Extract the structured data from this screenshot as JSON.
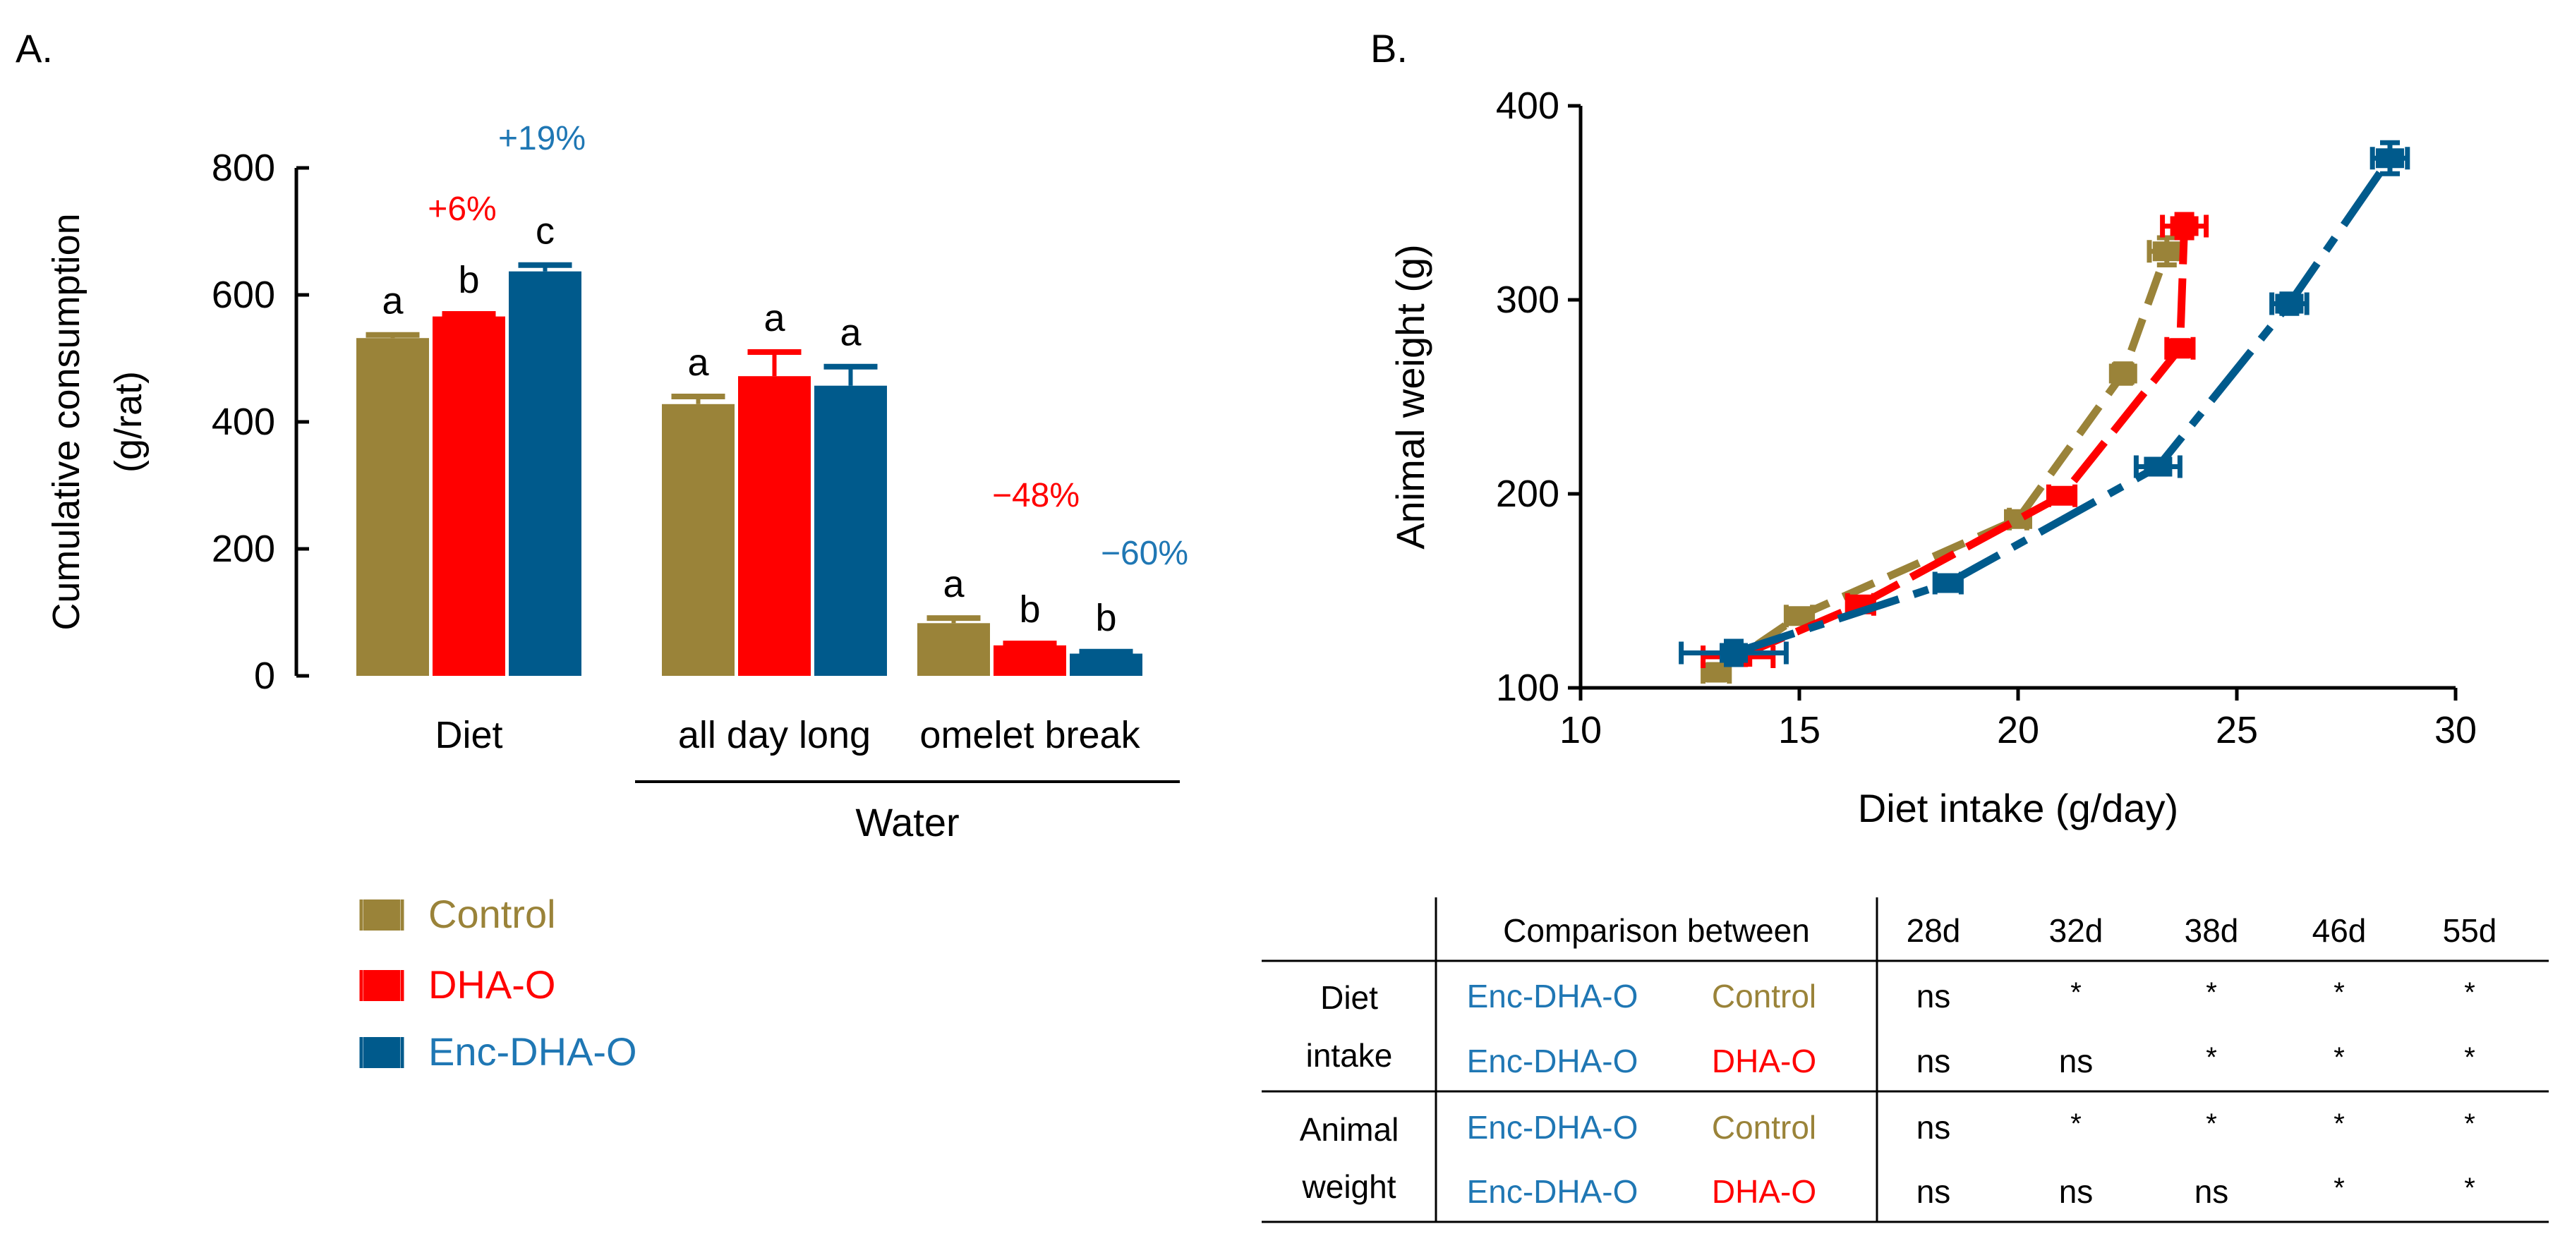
{
  "panel_a_label": "A.",
  "panel_b_label": "B.",
  "colors": {
    "Control": "#9a8339",
    "DHA-O": "#ff0000",
    "Enc-DHA-O": "#005a8c"
  },
  "chart_data": [
    {
      "type": "bar",
      "panel": "A",
      "ylabel_line1": "Cumulative  consumption",
      "ylabel_line2": "(g/rat)",
      "ylim": [
        0,
        800
      ],
      "yticks": [
        0,
        200,
        400,
        600,
        800
      ],
      "categories": [
        "Diet",
        "all day long",
        "omelet break"
      ],
      "group_label": "Water",
      "series": [
        {
          "name": "Control",
          "values": [
            532,
            428,
            83
          ],
          "errors": [
            5,
            12,
            8
          ]
        },
        {
          "name": "DHA-O",
          "values": [
            566,
            472,
            48
          ],
          "errors": [
            4,
            38,
            3
          ]
        },
        {
          "name": "Enc-DHA-O",
          "values": [
            637,
            457,
            35
          ],
          "errors": [
            10,
            30,
            3
          ]
        }
      ],
      "letters": [
        [
          "a",
          "b",
          "c"
        ],
        [
          "a",
          "a",
          "a"
        ],
        [
          "a",
          "b",
          "b"
        ]
      ],
      "annotations": [
        {
          "text": "+6%",
          "category": 0,
          "series": 1
        },
        {
          "text": "+19%",
          "category": 0,
          "series": 2
        },
        {
          "text": "−48%",
          "category": 2,
          "series": 1
        },
        {
          "text": "−60%",
          "category": 2,
          "series": 2
        }
      ]
    },
    {
      "type": "line",
      "panel": "B",
      "xlabel": "Diet intake  (g/day)",
      "ylabel": "Animal weight  (g)",
      "xlim": [
        10,
        30
      ],
      "ylim": [
        100,
        400
      ],
      "xticks": [
        10,
        15,
        20,
        25,
        30
      ],
      "yticks": [
        100,
        200,
        300,
        400
      ],
      "series": [
        {
          "name": "Control",
          "x": [
            13.1,
            15.0,
            20.0,
            22.4,
            23.4
          ],
          "y": [
            108,
            137,
            187,
            262,
            325
          ],
          "xerr": [
            0.3,
            0.3,
            0.2,
            0.2,
            0.4
          ],
          "yerr": [
            4,
            3,
            3,
            5,
            7
          ]
        },
        {
          "name": "DHA-O",
          "x": [
            13.6,
            16.4,
            21.0,
            23.7,
            23.8
          ],
          "y": [
            116,
            143,
            199,
            275,
            338
          ],
          "xerr": [
            0.8,
            0.3,
            0.3,
            0.3,
            0.5
          ],
          "yerr": [
            4,
            3,
            3,
            4,
            6
          ]
        },
        {
          "name": "Enc-DHA-O",
          "x": [
            13.5,
            18.4,
            23.2,
            26.2,
            28.5
          ],
          "y": [
            118,
            154,
            214,
            298,
            373
          ],
          "xerr": [
            1.2,
            0.3,
            0.5,
            0.4,
            0.4
          ],
          "yerr": [
            6,
            3,
            3,
            5,
            8
          ]
        }
      ]
    }
  ],
  "legend": [
    {
      "name": "Control",
      "label": "Control"
    },
    {
      "name": "DHA-O",
      "label": "DHA-O"
    },
    {
      "name": "Enc-DHA-O",
      "label": "Enc-DHA-O"
    }
  ],
  "table": {
    "header": [
      "Comparison between",
      "28d",
      "32d",
      "38d",
      "46d",
      "55d"
    ],
    "groups": [
      {
        "label_lines": [
          "Diet",
          "intake"
        ],
        "rows": [
          {
            "a": "Enc-DHA-O",
            "b": "Control",
            "vals": [
              "ns",
              "*",
              "*",
              "*",
              "*"
            ]
          },
          {
            "a": "Enc-DHA-O",
            "b": "DHA-O",
            "vals": [
              "ns",
              "ns",
              "*",
              "*",
              "*"
            ]
          }
        ]
      },
      {
        "label_lines": [
          "Animal",
          "weight"
        ],
        "rows": [
          {
            "a": "Enc-DHA-O",
            "b": "Control",
            "vals": [
              "ns",
              "*",
              "*",
              "*",
              "*"
            ]
          },
          {
            "a": "Enc-DHA-O",
            "b": "DHA-O",
            "vals": [
              "ns",
              "ns",
              "ns",
              "*",
              "*"
            ]
          }
        ]
      }
    ]
  }
}
